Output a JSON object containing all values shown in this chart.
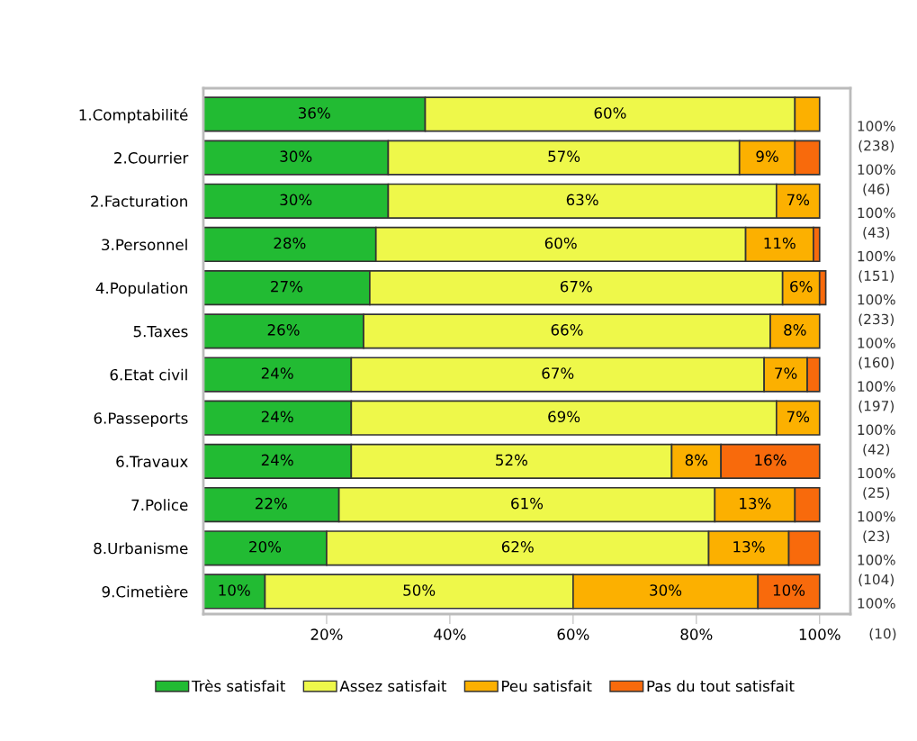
{
  "chart_data": {
    "type": "bar",
    "orientation": "horizontal",
    "stacked": true,
    "legend": "bottom",
    "categories": [
      "1.Comptabilité",
      "2.Courrier",
      "2.Facturation",
      "3.Personnel",
      "4.Population",
      "5.Taxes",
      "6.Etat civil",
      "6.Passeports",
      "6.Travaux",
      "7.Police",
      "8.Urbanisme",
      "9.Cimetière"
    ],
    "xlim": [
      0,
      105
    ],
    "xticks": [
      {
        "value": 20,
        "label": "20%"
      },
      {
        "value": 40,
        "label": "40%"
      },
      {
        "value": 60,
        "label": "60%"
      },
      {
        "value": 80,
        "label": "80%"
      },
      {
        "value": 100,
        "label": "100%"
      }
    ],
    "series": [
      {
        "name": "Très satisfait",
        "color": "#22bb33",
        "values": [
          36,
          30,
          30,
          28,
          27,
          26,
          24,
          24,
          24,
          22,
          20,
          10
        ],
        "value_labels": [
          "36%",
          "30%",
          "30%",
          "28%",
          "27%",
          "26%",
          "24%",
          "24%",
          "24%",
          "22%",
          "20%",
          "10%"
        ]
      },
      {
        "name": "Assez satisfait",
        "color": "#eef84a",
        "values": [
          60,
          57,
          63,
          60,
          67,
          66,
          67,
          69,
          52,
          61,
          62,
          50
        ],
        "value_labels": [
          "60%",
          "57%",
          "63%",
          "60%",
          "67%",
          "66%",
          "67%",
          "69%",
          "52%",
          "61%",
          "62%",
          "50%"
        ]
      },
      {
        "name": "Peu satisfait",
        "color": "#fcb000",
        "values": [
          4,
          9,
          7,
          11,
          6,
          8,
          7,
          7,
          8,
          13,
          13,
          30
        ],
        "value_labels": [
          null,
          "9%",
          "7%",
          "11%",
          "6%",
          "8%",
          "7%",
          "7%",
          "8%",
          "13%",
          "13%",
          "30%"
        ]
      },
      {
        "name": "Pas du tout satisfait",
        "color": "#f86a0c",
        "values": [
          null,
          4,
          null,
          1,
          1,
          null,
          2,
          null,
          16,
          4,
          5,
          10
        ],
        "value_labels": [
          null,
          null,
          null,
          null,
          null,
          null,
          null,
          null,
          "16%",
          null,
          null,
          "10%"
        ]
      }
    ],
    "totals": [
      "100%",
      "100%",
      "100%",
      "100%",
      "100%",
      "100%",
      "100%",
      "100%",
      "100%",
      "100%",
      "100%",
      "100%"
    ],
    "annotations": [
      "(238)",
      "(46)",
      "(43)",
      "(151)",
      "(233)",
      "(160)",
      "(197)",
      "(42)",
      "(25)",
      "(23)",
      "(104)",
      "(10)"
    ]
  }
}
